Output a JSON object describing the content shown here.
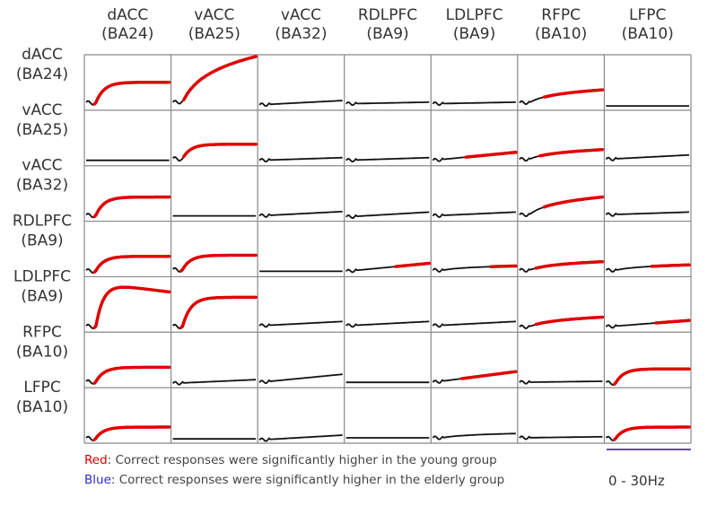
{
  "chart_data": {
    "type": "line",
    "layout": "7x7 small multiples",
    "column_labels": [
      [
        "dACC",
        "(BA24)"
      ],
      [
        "vACC",
        "(BA25)"
      ],
      [
        "vACC",
        "(BA32)"
      ],
      [
        "RDLPFC",
        "(BA9)"
      ],
      [
        "LDLPFC",
        "(BA9)"
      ],
      [
        "RFPC",
        "(BA10)"
      ],
      [
        "LFPC",
        "(BA10)"
      ]
    ],
    "row_labels": [
      [
        "dACC",
        "(BA24)"
      ],
      [
        "vACC",
        "(BA25)"
      ],
      [
        "vACC",
        "(BA32)"
      ],
      [
        "RDLPFC",
        "(BA9)"
      ],
      [
        "LDLPFC",
        "(BA9)"
      ],
      [
        "RFPC",
        "(BA10)"
      ],
      [
        "LFPC",
        "(BA10)"
      ]
    ],
    "x_range_hz": [
      0,
      30
    ],
    "cells_note": "each cell: shape, start level, end level (0-1 normalized), red_from (fraction of frequency range where significance begins, null = none)",
    "cells": [
      [
        {
          "shape": "sharp",
          "start": 0.15,
          "end": 0.52,
          "red_from": 0.1
        },
        {
          "shape": "log",
          "start": 0.15,
          "end": 1.0,
          "red_from": 0.12
        },
        {
          "shape": "linear",
          "start": 0.1,
          "end": 0.18,
          "red_from": null
        },
        {
          "shape": "linear",
          "start": 0.12,
          "end": 0.15,
          "red_from": null
        },
        {
          "shape": "linear",
          "start": 0.12,
          "end": 0.15,
          "red_from": null
        },
        {
          "shape": "log",
          "start": 0.14,
          "end": 0.38,
          "red_from": 0.3
        },
        {
          "shape": "flat",
          "start": 0.08,
          "end": 0.08,
          "red_from": null
        }
      ],
      [
        {
          "shape": "flat",
          "start": 0.1,
          "end": 0.1,
          "red_from": null
        },
        {
          "shape": "sharp",
          "start": 0.14,
          "end": 0.4,
          "red_from": 0.12
        },
        {
          "shape": "linear",
          "start": 0.1,
          "end": 0.15,
          "red_from": null
        },
        {
          "shape": "linear",
          "start": 0.1,
          "end": 0.15,
          "red_from": null
        },
        {
          "shape": "linear",
          "start": 0.1,
          "end": 0.25,
          "red_from": 0.4
        },
        {
          "shape": "log",
          "start": 0.12,
          "end": 0.3,
          "red_from": 0.25
        },
        {
          "shape": "linear",
          "start": 0.12,
          "end": 0.2,
          "red_from": null
        }
      ],
      [
        {
          "shape": "sharp",
          "start": 0.12,
          "end": 0.45,
          "red_from": 0.1
        },
        {
          "shape": "flat",
          "start": 0.1,
          "end": 0.1,
          "red_from": null
        },
        {
          "shape": "linear",
          "start": 0.1,
          "end": 0.18,
          "red_from": null
        },
        {
          "shape": "linear",
          "start": 0.08,
          "end": 0.17,
          "red_from": null
        },
        {
          "shape": "linear",
          "start": 0.1,
          "end": 0.17,
          "red_from": null
        },
        {
          "shape": "log",
          "start": 0.12,
          "end": 0.45,
          "red_from": 0.3
        },
        {
          "shape": "linear",
          "start": 0.12,
          "end": 0.17,
          "red_from": null
        }
      ],
      [
        {
          "shape": "sharp",
          "start": 0.12,
          "end": 0.38,
          "red_from": 0.1
        },
        {
          "shape": "sharp",
          "start": 0.14,
          "end": 0.4,
          "red_from": 0.1
        },
        {
          "shape": "flat",
          "start": 0.1,
          "end": 0.1,
          "red_from": null
        },
        {
          "shape": "linear",
          "start": 0.1,
          "end": 0.25,
          "red_from": 0.6
        },
        {
          "shape": "log",
          "start": 0.12,
          "end": 0.2,
          "red_from": 0.7
        },
        {
          "shape": "log",
          "start": 0.12,
          "end": 0.28,
          "red_from": 0.2
        },
        {
          "shape": "log",
          "start": 0.12,
          "end": 0.22,
          "red_from": 0.55
        }
      ],
      [
        {
          "shape": "peak",
          "start": 0.12,
          "end": 0.75,
          "red_from": 0.1
        },
        {
          "shape": "sharp",
          "start": 0.12,
          "end": 0.65,
          "red_from": 0.1
        },
        {
          "shape": "linear",
          "start": 0.12,
          "end": 0.2,
          "red_from": null
        },
        {
          "shape": "linear",
          "start": 0.12,
          "end": 0.2,
          "red_from": null
        },
        {
          "shape": "linear",
          "start": 0.12,
          "end": 0.2,
          "red_from": null
        },
        {
          "shape": "log",
          "start": 0.1,
          "end": 0.28,
          "red_from": 0.2
        },
        {
          "shape": "linear",
          "start": 0.1,
          "end": 0.22,
          "red_from": 0.6
        }
      ],
      [
        {
          "shape": "sharp",
          "start": 0.12,
          "end": 0.38,
          "red_from": 0.1
        },
        {
          "shape": "linear",
          "start": 0.08,
          "end": 0.15,
          "red_from": null
        },
        {
          "shape": "linear",
          "start": 0.1,
          "end": 0.25,
          "red_from": null
        },
        {
          "shape": "flat",
          "start": 0.1,
          "end": 0.1,
          "red_from": null
        },
        {
          "shape": "linear",
          "start": 0.1,
          "end": 0.3,
          "red_from": 0.35
        },
        {
          "shape": "linear",
          "start": 0.1,
          "end": 0.12,
          "red_from": null
        },
        {
          "shape": "sharp",
          "start": 0.1,
          "end": 0.35,
          "red_from": 0.1
        }
      ],
      [
        {
          "shape": "sharp",
          "start": 0.1,
          "end": 0.3,
          "red_from": 0.1
        },
        {
          "shape": "flat",
          "start": 0.08,
          "end": 0.08,
          "red_from": null
        },
        {
          "shape": "linear",
          "start": 0.06,
          "end": 0.15,
          "red_from": null
        },
        {
          "shape": "flat",
          "start": 0.1,
          "end": 0.1,
          "red_from": null
        },
        {
          "shape": "log",
          "start": 0.1,
          "end": 0.18,
          "red_from": null
        },
        {
          "shape": "linear",
          "start": 0.1,
          "end": 0.12,
          "red_from": null
        },
        {
          "shape": "sharp",
          "start": 0.1,
          "end": 0.3,
          "red_from": 0.1
        }
      ]
    ],
    "colors": {
      "significant_young": "#e00000",
      "significant_elderly": "#2a2ad0",
      "nonsignificant": "#111111",
      "scale_bar": "#6a4c9c",
      "grid": "#888888"
    }
  },
  "legend": {
    "red_word": "Red",
    "red_text": ": Correct responses were significantly higher in the young group",
    "blue_word": "Blue",
    "blue_text": ": Correct responses were significantly higher in the elderly group"
  },
  "scale_label": "0 - 30Hz"
}
